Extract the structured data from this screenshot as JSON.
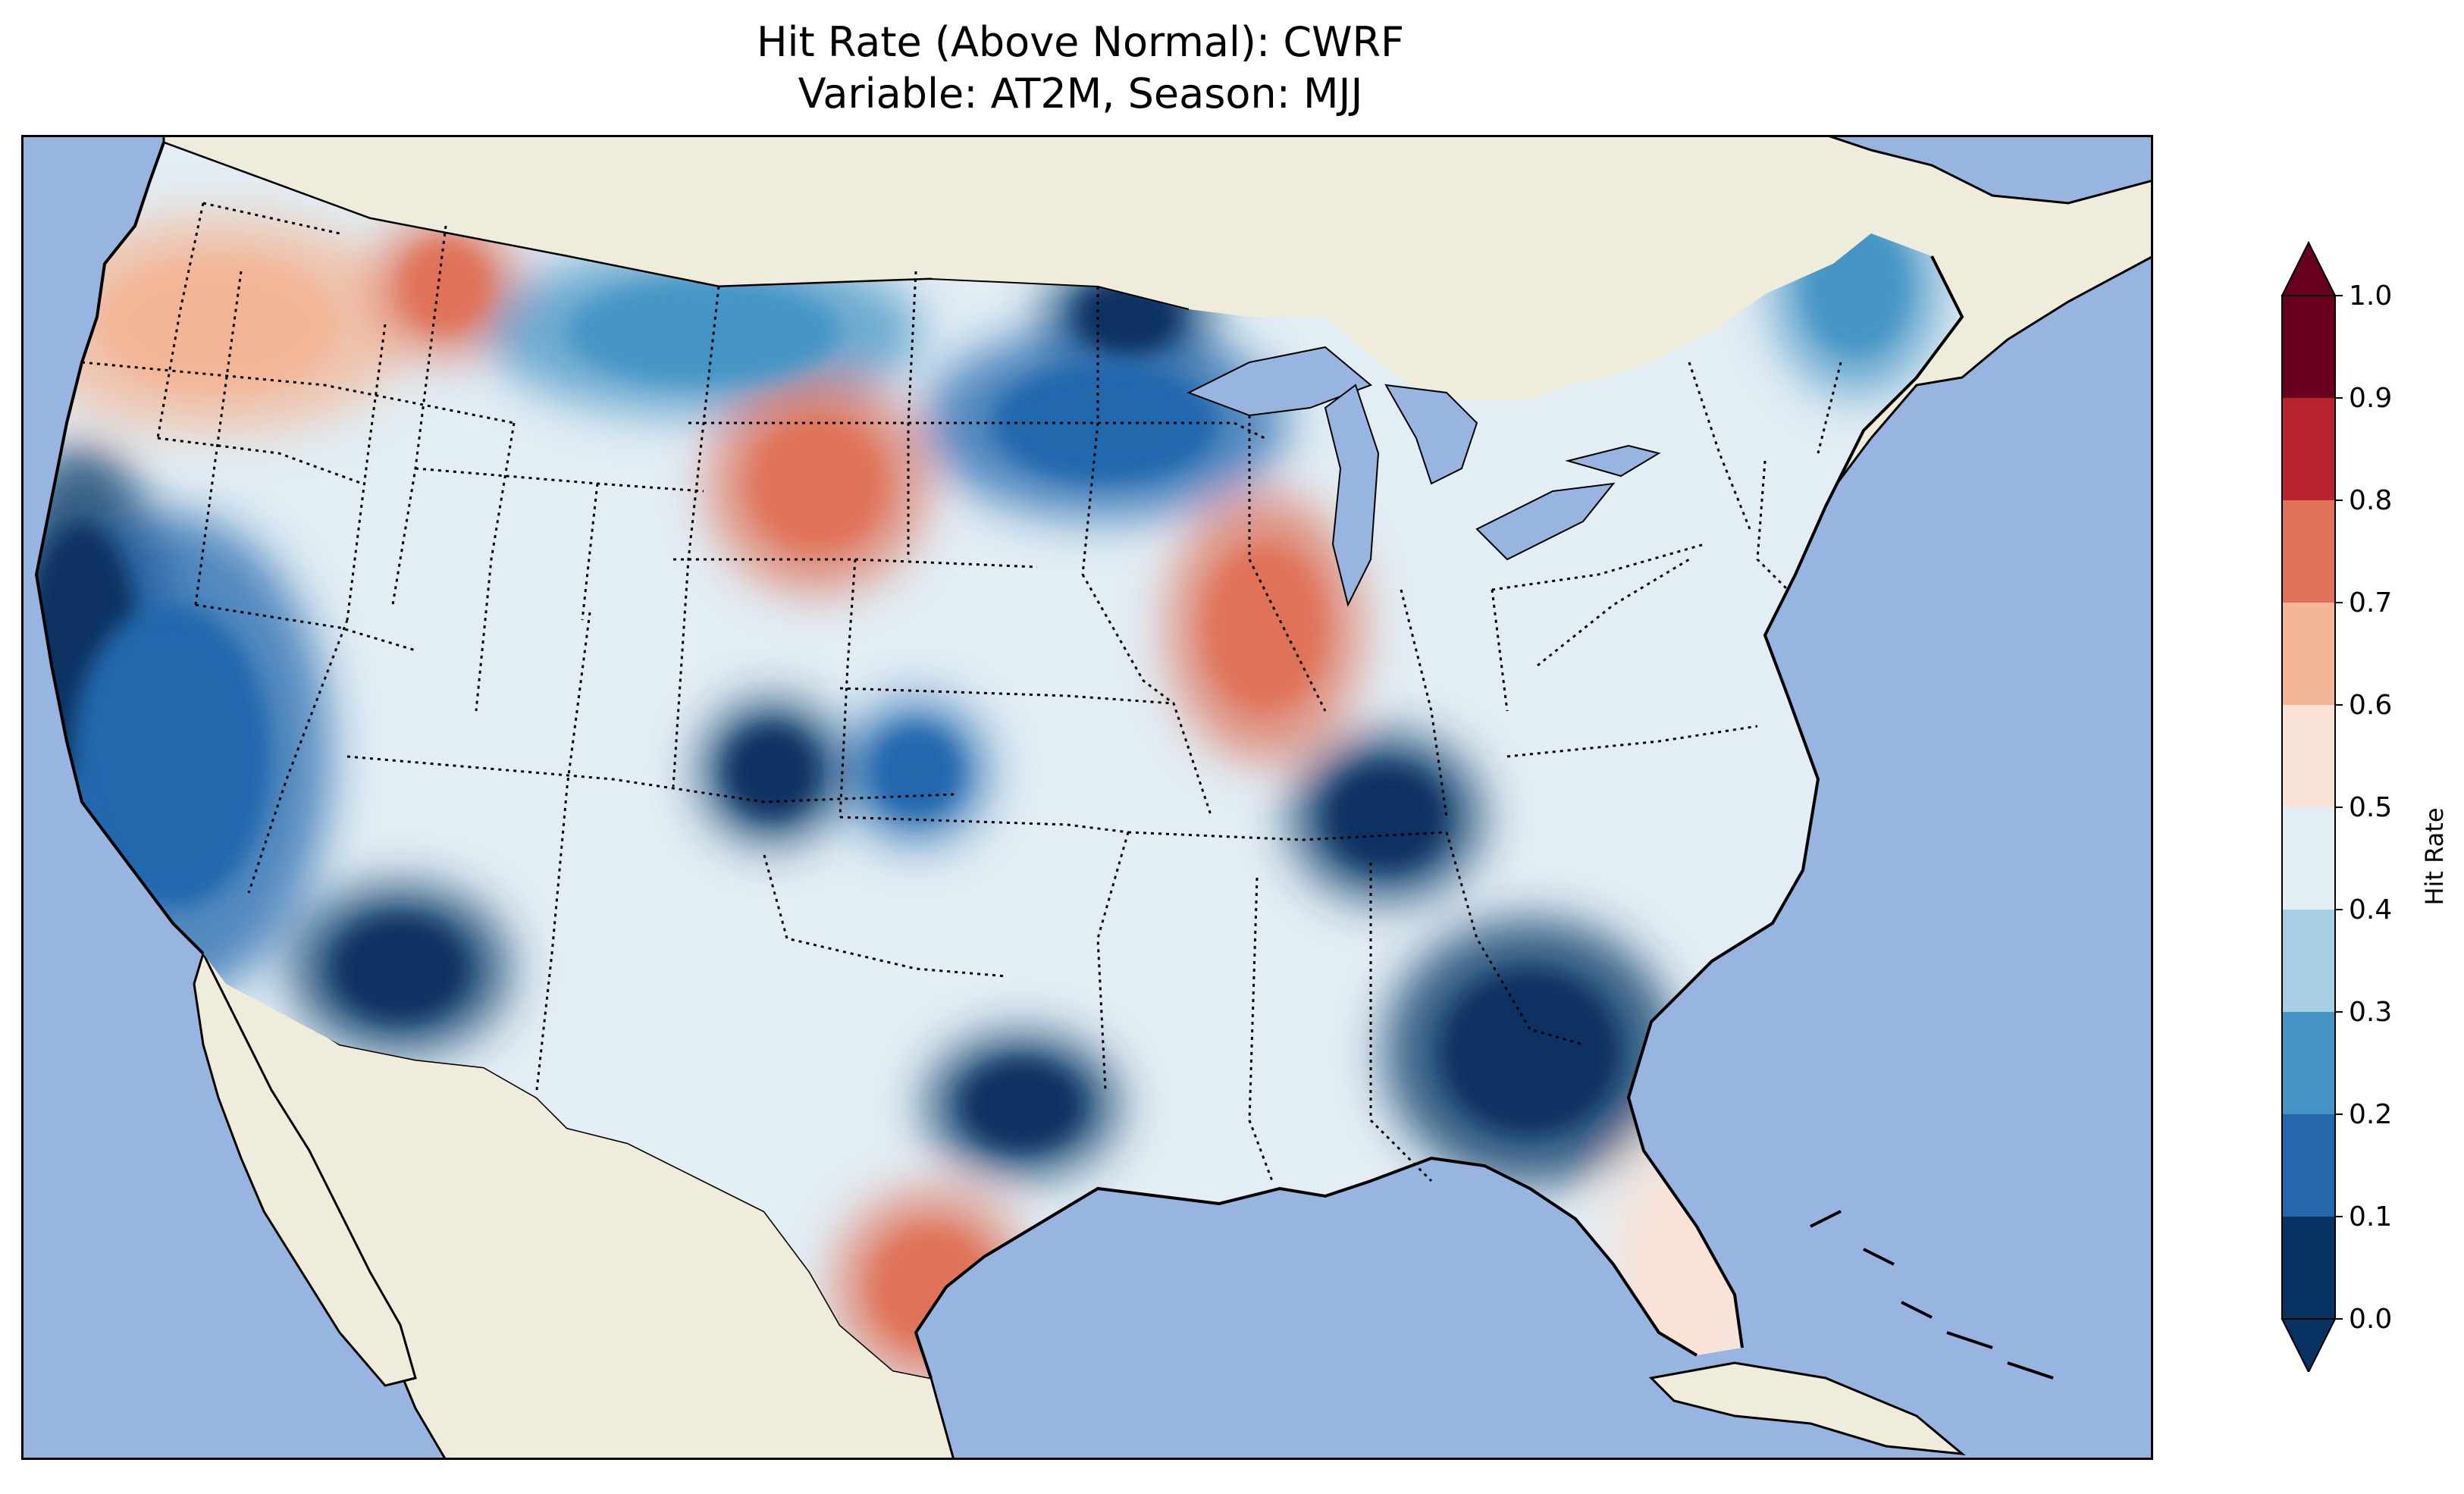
{
  "title": {
    "line1": "Hit Rate (Above Normal): CWRF",
    "line2": "Variable: AT2M, Season: MJJ"
  },
  "colors": {
    "ocean": "#98b4e0",
    "land": "#efecdb",
    "border": "#000000"
  },
  "colorbar": {
    "label": "Hit Rate",
    "ticks": [
      "0.0",
      "0.1",
      "0.2",
      "0.3",
      "0.4",
      "0.5",
      "0.6",
      "0.7",
      "0.8",
      "0.9",
      "1.0"
    ],
    "bins": [
      {
        "range": [
          0.0,
          0.1
        ],
        "color": "#073262"
      },
      {
        "range": [
          0.1,
          0.2
        ],
        "color": "#2467ad"
      },
      {
        "range": [
          0.2,
          0.3
        ],
        "color": "#4594c5"
      },
      {
        "range": [
          0.3,
          0.4
        ],
        "color": "#a7cfe4"
      },
      {
        "range": [
          0.4,
          0.5
        ],
        "color": "#e2edf4"
      },
      {
        "range": [
          0.5,
          0.6
        ],
        "color": "#f9e1d6"
      },
      {
        "range": [
          0.6,
          0.7
        ],
        "color": "#f3b596"
      },
      {
        "range": [
          0.7,
          0.8
        ],
        "color": "#df7259"
      },
      {
        "range": [
          0.8,
          0.9
        ],
        "color": "#b7242f"
      },
      {
        "range": [
          0.9,
          1.0
        ],
        "color": "#67001f"
      }
    ],
    "extend": "both"
  },
  "map_regions": [
    {
      "name": "Central California coast",
      "value": 0.05
    },
    {
      "name": "Southern California / Nevada",
      "value": 0.15
    },
    {
      "name": "Southern Nevada / Arizona",
      "value": 0.05
    },
    {
      "name": "Washington / Oregon",
      "value": 0.65
    },
    {
      "name": "Northern Idaho",
      "value": 0.7
    },
    {
      "name": "Northern Montana plains",
      "value": 0.25
    },
    {
      "name": "Western Dakotas",
      "value": 0.7
    },
    {
      "name": "Minnesota Arrowhead",
      "value": 0.05
    },
    {
      "name": "Central Minnesota",
      "value": 0.15
    },
    {
      "name": "Central Illinois",
      "value": 0.75
    },
    {
      "name": "Colorado",
      "value": 0.05
    },
    {
      "name": "Kansas",
      "value": 0.15
    },
    {
      "name": "Kentucky / Tennessee",
      "value": 0.05
    },
    {
      "name": "Georgia / South Carolina",
      "value": 0.05
    },
    {
      "name": "West Texas",
      "value": 0.05
    },
    {
      "name": "South Texas coast",
      "value": 0.75
    },
    {
      "name": "Florida peninsula",
      "value": 0.55
    },
    {
      "name": "Northern Maine",
      "value": 0.25
    }
  ]
}
